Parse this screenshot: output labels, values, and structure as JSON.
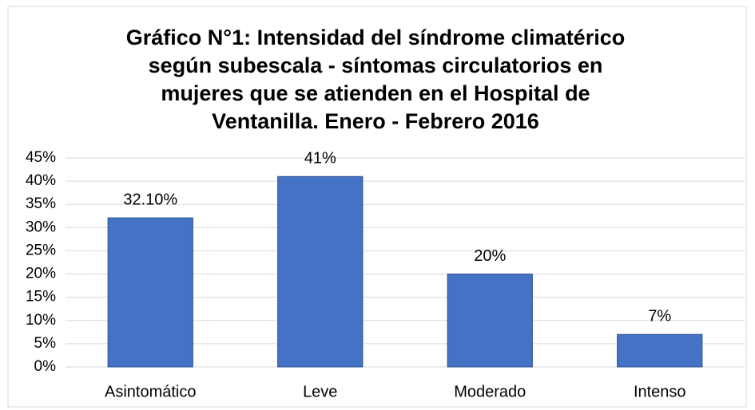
{
  "chart_data": {
    "type": "bar",
    "title": "Gráfico N°1: Intensidad del síndrome climatérico según subescala - síntomas circulatorios en mujeres que se atienden en el Hospital de Ventanilla. Enero - Febrero 2016",
    "categories": [
      "Asintomático",
      "Leve",
      "Moderado",
      "Intenso"
    ],
    "values": [
      32.1,
      41,
      20,
      7
    ],
    "value_labels": [
      "32.10%",
      "41%",
      "20%",
      "7%"
    ],
    "color": "#4472c4",
    "ylim": [
      0,
      45
    ],
    "yticks": [
      {
        "value": 0,
        "label": "0%"
      },
      {
        "value": 5,
        "label": "5%"
      },
      {
        "value": 10,
        "label": "10%"
      },
      {
        "value": 15,
        "label": "15%"
      },
      {
        "value": 20,
        "label": "20%"
      },
      {
        "value": 25,
        "label": "25%"
      },
      {
        "value": 30,
        "label": "30%"
      },
      {
        "value": 35,
        "label": "35%"
      },
      {
        "value": 40,
        "label": "40%"
      },
      {
        "value": 45,
        "label": "45%"
      }
    ],
    "grid": true
  }
}
